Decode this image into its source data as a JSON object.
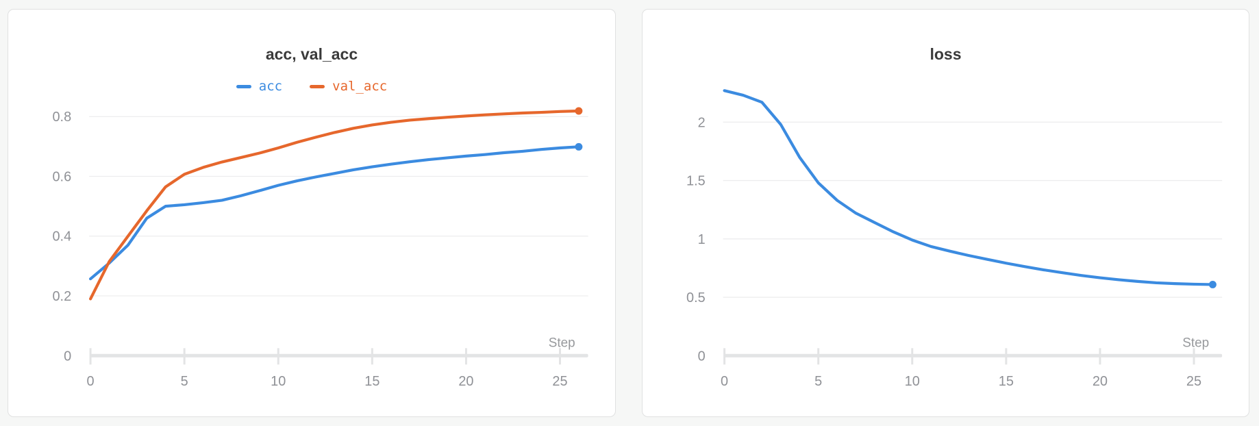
{
  "page": {
    "background": "#f6f7f6"
  },
  "chart_data": [
    {
      "type": "line",
      "title": "acc, val_acc",
      "xlabel": "Step",
      "x": [
        0,
        1,
        2,
        3,
        4,
        5,
        6,
        7,
        8,
        9,
        10,
        11,
        12,
        13,
        14,
        15,
        16,
        17,
        18,
        19,
        20,
        21,
        22,
        23,
        24,
        25,
        26
      ],
      "series": [
        {
          "name": "acc",
          "color": "#3b8be0",
          "values": [
            0.257,
            0.31,
            0.37,
            0.46,
            0.5,
            0.505,
            0.512,
            0.52,
            0.535,
            0.552,
            0.57,
            0.585,
            0.598,
            0.61,
            0.622,
            0.632,
            0.641,
            0.649,
            0.656,
            0.662,
            0.668,
            0.673,
            0.679,
            0.684,
            0.69,
            0.695,
            0.699
          ]
        },
        {
          "name": "val_acc",
          "color": "#e6672c",
          "values": [
            0.19,
            0.315,
            0.4,
            0.485,
            0.565,
            0.607,
            0.63,
            0.648,
            0.663,
            0.678,
            0.695,
            0.714,
            0.731,
            0.747,
            0.761,
            0.772,
            0.781,
            0.788,
            0.793,
            0.798,
            0.802,
            0.806,
            0.809,
            0.812,
            0.814,
            0.817,
            0.819
          ]
        }
      ],
      "xticks": [
        0,
        5,
        10,
        15,
        20,
        25
      ],
      "yticks": [
        0,
        0.2,
        0.4,
        0.6,
        0.8
      ],
      "xlim": [
        0,
        26.5
      ],
      "ylim": [
        0,
        0.9
      ],
      "grid": true,
      "show_legend": true,
      "legend_position": "top-center",
      "endpoint_marker": true
    },
    {
      "type": "line",
      "title": "loss",
      "xlabel": "Step",
      "x": [
        0,
        1,
        2,
        3,
        4,
        5,
        6,
        7,
        8,
        9,
        10,
        11,
        12,
        13,
        14,
        15,
        16,
        17,
        18,
        19,
        20,
        21,
        22,
        23,
        24,
        25,
        26
      ],
      "series": [
        {
          "name": "loss",
          "color": "#3b8be0",
          "values": [
            2.27,
            2.23,
            2.17,
            1.98,
            1.7,
            1.48,
            1.33,
            1.22,
            1.14,
            1.06,
            0.99,
            0.935,
            0.895,
            0.858,
            0.825,
            0.792,
            0.762,
            0.735,
            0.71,
            0.687,
            0.667,
            0.65,
            0.636,
            0.624,
            0.617,
            0.612,
            0.609
          ]
        }
      ],
      "xticks": [
        0,
        5,
        10,
        15,
        20,
        25
      ],
      "yticks": [
        0,
        0.5,
        1,
        1.5,
        2
      ],
      "xlim": [
        0,
        26.5
      ],
      "ylim": [
        0,
        2.35
      ],
      "grid": true,
      "show_legend": false,
      "legend_position": "none",
      "endpoint_marker": true
    }
  ]
}
